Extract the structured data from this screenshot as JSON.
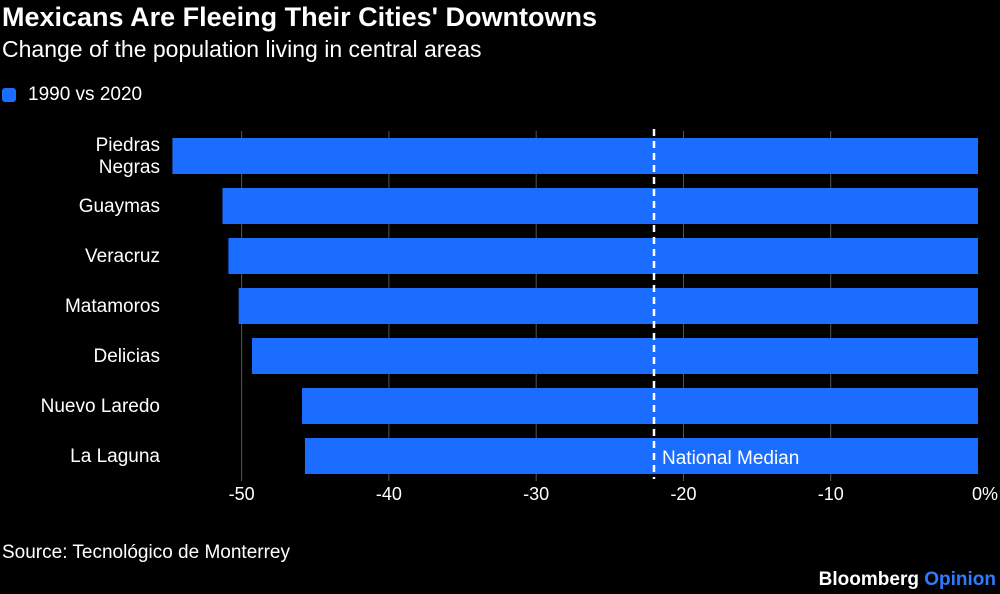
{
  "chart_data": {
    "type": "bar",
    "orientation": "horizontal",
    "title": "Mexicans Are Fleeing Their Cities' Downtowns",
    "subtitle": "Change of the population living in central areas",
    "legend": [
      {
        "name": "1990 vs 2020",
        "color": "#1a6dff"
      }
    ],
    "categories": [
      [
        "Piedras",
        "Negras"
      ],
      [
        "Guaymas"
      ],
      [
        "Veracruz"
      ],
      [
        "Matamoros"
      ],
      [
        "Delicias"
      ],
      [
        "Nuevo Laredo"
      ],
      [
        "La Laguna"
      ]
    ],
    "series": [
      {
        "name": "1990 vs 2020",
        "values": [
          -54.7,
          -51.3,
          -50.9,
          -50.2,
          -49.3,
          -45.9,
          -45.7
        ]
      }
    ],
    "xlim": [
      -55,
      0
    ],
    "xticks": [
      {
        "value": -50,
        "label": "-50"
      },
      {
        "value": -40,
        "label": "-40"
      },
      {
        "value": -30,
        "label": "-30"
      },
      {
        "value": -20,
        "label": "-20"
      },
      {
        "value": -10,
        "label": "-10"
      },
      {
        "value": 0,
        "label": "0%"
      }
    ],
    "grid": true,
    "reference_line": {
      "value": -22,
      "label": "National Median",
      "style": "dashed",
      "color": "#ffffff"
    },
    "bar_color": "#1a6dff",
    "background_color": "#000000"
  },
  "footer": {
    "source": "Source: Tecnológico de Monterrey",
    "brand_main": "Bloomberg",
    "brand_sub": "Opinion",
    "brand_sub_color": "#2f7bff"
  }
}
